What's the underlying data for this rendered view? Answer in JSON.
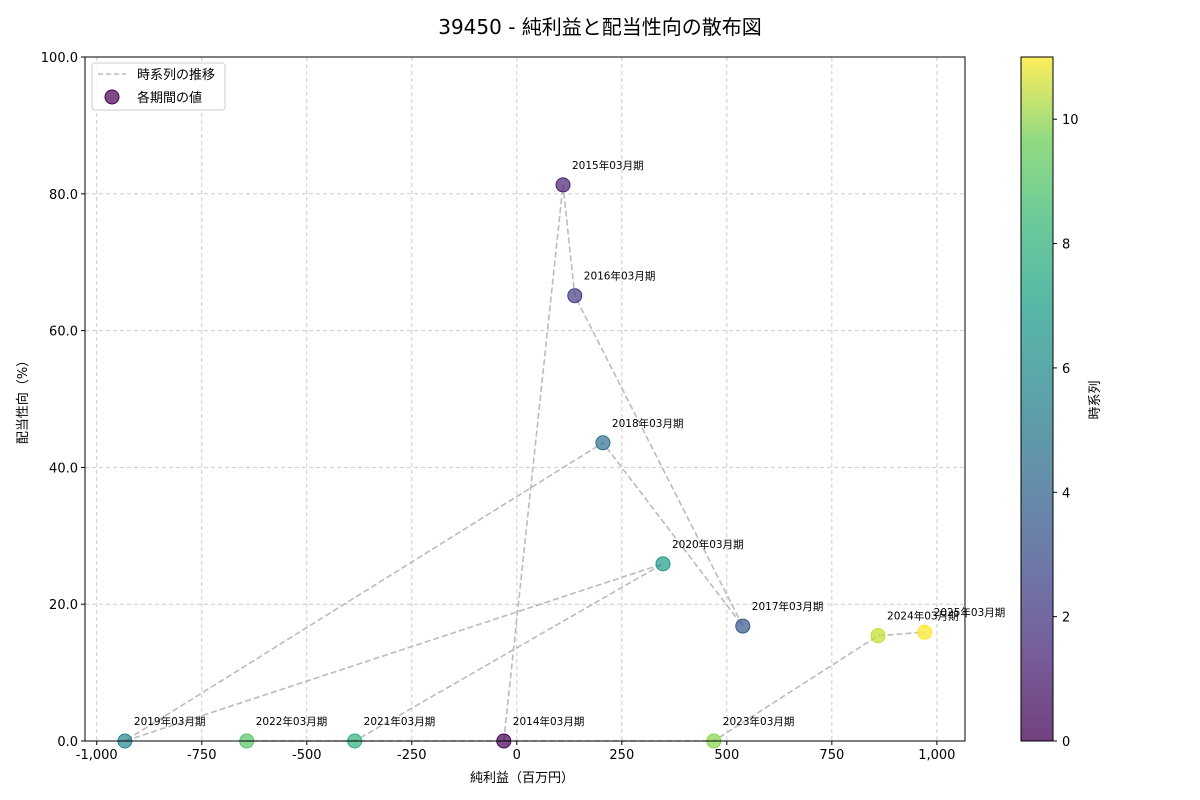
{
  "chart_data": {
    "type": "scatter",
    "title": "39450 - 純利益と配当性向の散布図",
    "xlabel": "純利益（百万円）",
    "ylabel": "配当性向（%）",
    "xlim": [
      -1028,
      1067
    ],
    "ylim": [
      0,
      100
    ],
    "xticks": [
      -1000,
      -750,
      -500,
      -250,
      0,
      250,
      500,
      750,
      1000
    ],
    "xtick_labels": [
      "-1,000",
      "-750",
      "-500",
      "-250",
      "0",
      "250",
      "500",
      "750",
      "1,000"
    ],
    "yticks": [
      0,
      20,
      40,
      60,
      80,
      100
    ],
    "ytick_labels": [
      "0.0",
      "20.0",
      "40.0",
      "60.0",
      "80.0",
      "100.0"
    ],
    "grid": true,
    "legend": {
      "placement": "top-left",
      "entries": [
        "時系列の推移",
        "各期間の値"
      ]
    },
    "colorbar": {
      "label": "時系列",
      "range": [
        0,
        11
      ],
      "ticks": [
        0,
        2,
        4,
        6,
        8,
        10
      ],
      "tick_labels": [
        "0",
        "2",
        "4",
        "6",
        "8",
        "10"
      ],
      "colormap": "viridis"
    },
    "points": [
      {
        "label": "2014年03月期",
        "x": -31,
        "y": 0.0,
        "t": 0
      },
      {
        "label": "2015年03月期",
        "x": 110,
        "y": 81.3,
        "t": 1
      },
      {
        "label": "2016年03月期",
        "x": 138,
        "y": 65.1,
        "t": 2
      },
      {
        "label": "2017年03月期",
        "x": 538,
        "y": 16.8,
        "t": 3
      },
      {
        "label": "2018年03月期",
        "x": 205,
        "y": 43.6,
        "t": 4
      },
      {
        "label": "2019年03月期",
        "x": -933,
        "y": 0.0,
        "t": 5
      },
      {
        "label": "2020年03月期",
        "x": 348,
        "y": 25.9,
        "t": 6
      },
      {
        "label": "2021年03月期",
        "x": -386,
        "y": 0.0,
        "t": 7
      },
      {
        "label": "2022年03月期",
        "x": -643,
        "y": 0.0,
        "t": 8
      },
      {
        "label": "2023年03月期",
        "x": 469,
        "y": 0.0,
        "t": 9
      },
      {
        "label": "2024年03月期",
        "x": 860,
        "y": 15.4,
        "t": 10
      },
      {
        "label": "2025年03月期",
        "x": 971,
        "y": 15.9,
        "t": 11
      }
    ],
    "line_color": "#bbbbbb"
  }
}
